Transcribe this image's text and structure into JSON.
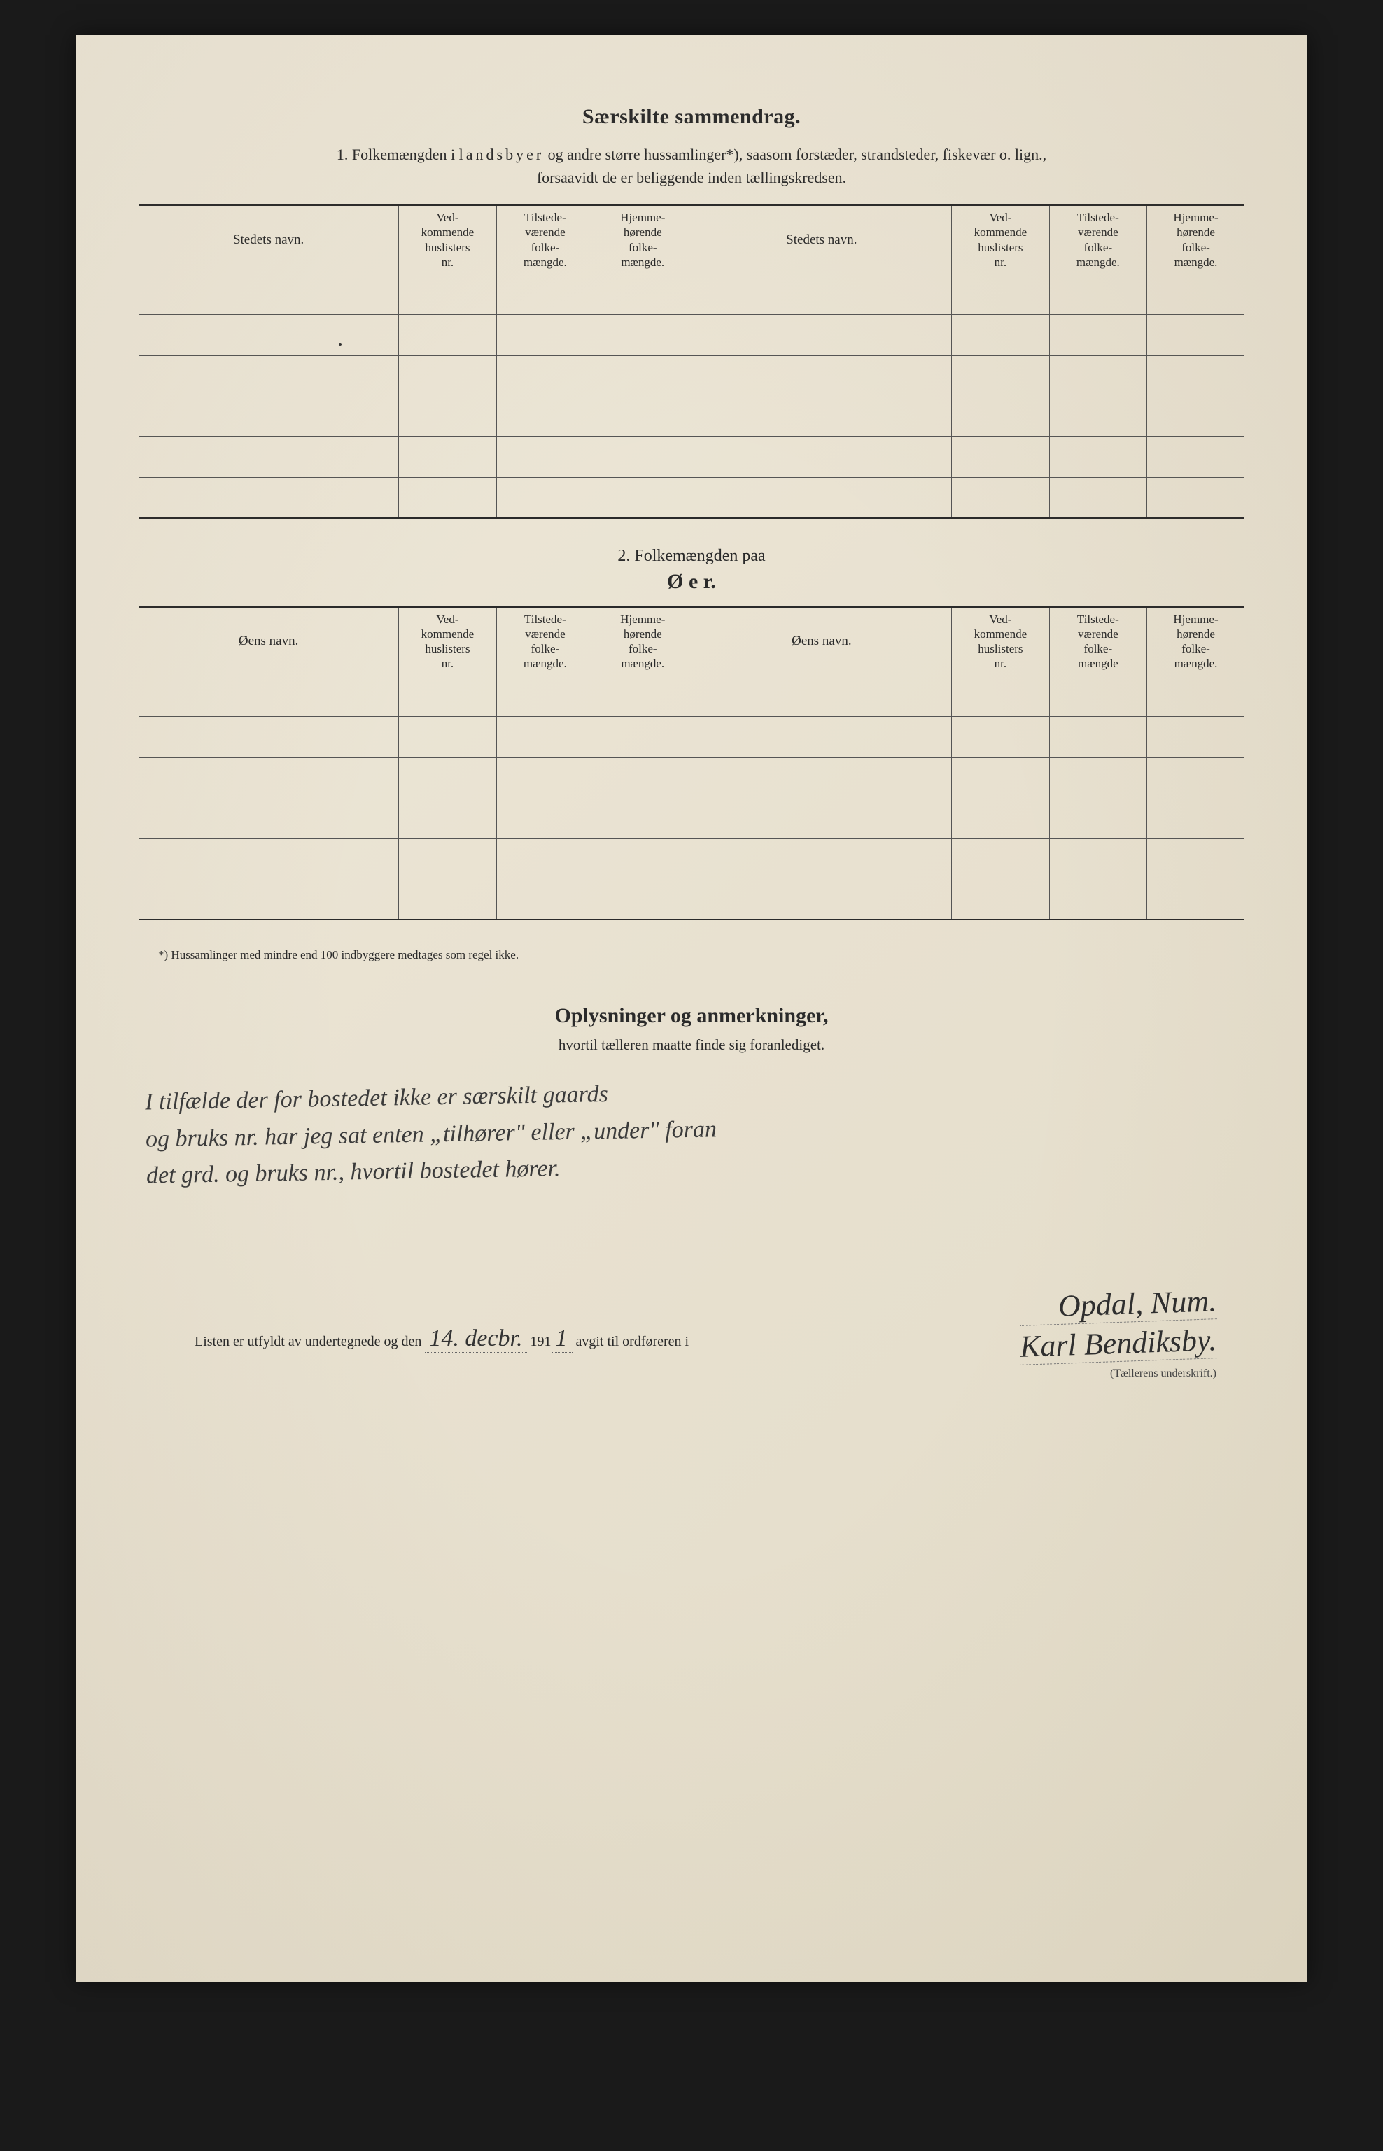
{
  "section1": {
    "title": "Særskilte sammendrag.",
    "intro_line1_pre": "1.   Folkemængden i ",
    "intro_line1_spaced": "landsbyer",
    "intro_line1_post": " og andre større hussamlinger*), saasom forstæder, strandsteder, fiskevær o. lign.,",
    "intro_line2": "forsaavidt de er beliggende inden tællingskredsen."
  },
  "table_headers": {
    "stedets_navn": "Stedets navn.",
    "oens_navn": "Øens navn.",
    "vedkommende": "Ved-\nkommende\nhuslisters\nnr.",
    "tilstede": "Tilstede-\nværende\nfolke-\nmængde.",
    "hjemme": "Hjemme-\nhørende\nfolke-\nmængde.",
    "tilstede2": "Tilstede-\nværende\nfolke-\nmængde",
    "hjemme2": "Hjemme-\nhørende\nfolke-\nmængde."
  },
  "section2": {
    "lead": "2.    Folkemængden paa",
    "title": "Ø e r."
  },
  "footnote": "*)  Hussamlinger med mindre end 100 indbyggere medtages som regel ikke.",
  "oplys": {
    "title": "Oplysninger og anmerkninger,",
    "sub": "hvortil tælleren maatte finde sig foranlediget.",
    "hand1": "I tilfælde der for bostedet ikke er særskilt gaards",
    "hand2": "og bruks nr. har jeg sat enten „tilhører\" eller „under\" foran",
    "hand3": "det grd. og bruks nr., hvortil bostedet hører."
  },
  "signline": {
    "pre": "Listen er utfyldt av undertegnede og den",
    "date_hand": "14. decbr.",
    "mid": "191",
    "year_hand": "1",
    "post": " avgit til ordføreren i",
    "place_hand": "Opdal, Num.",
    "name_hand": "Karl Bendiksby.",
    "caption": "(Tællerens underskrift.)"
  },
  "layout": {
    "body_rows": 6,
    "body_rows_2": 6
  },
  "colors": {
    "paper": "#ede6d6",
    "ink": "#2a2a2a",
    "bg": "#1a1a1a"
  }
}
